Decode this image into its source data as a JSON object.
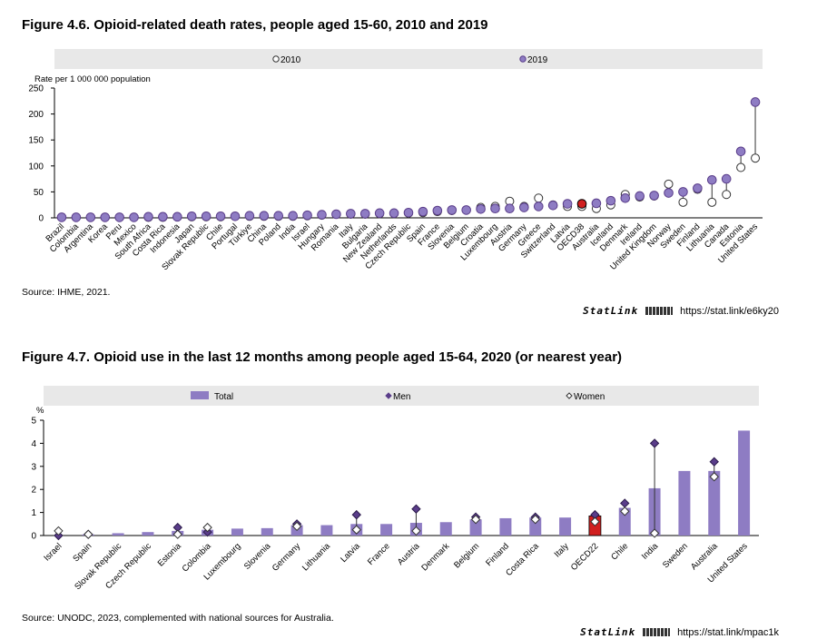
{
  "figures": [
    {
      "title": "Figure 4.6. Opioid-related death rates, people aged 15-60, 2010 and 2019",
      "source": "Source: IHME, 2021.",
      "statlink": {
        "brand": "StatLink",
        "url": "https://stat.link/e6ky20"
      }
    },
    {
      "title": "Figure 4.7. Opioid use in the last 12 months among people aged 15-64, 2020 (or nearest year)",
      "source": "Source: UNODC, 2023, complemented with national sources for Australia.",
      "statlink": {
        "brand": "StatLink",
        "url": "https://stat.link/mpac1k"
      }
    }
  ],
  "colors": {
    "purple": "#8e7cc3",
    "purple_dark": "#5a3d8a",
    "highlight": "#d11f1f",
    "legend_bg": "#e8e8e8"
  },
  "chart_data": [
    {
      "type": "scatter",
      "ylabel": "Rate per 1 000 000 population",
      "ylim": [
        0,
        250
      ],
      "yticks": [
        0,
        50,
        100,
        150,
        200,
        250
      ],
      "grid": false,
      "legend": "top",
      "highlight_category": "OECD38",
      "categories": [
        "Brazil",
        "Colombia",
        "Argentina",
        "Korea",
        "Peru",
        "Mexico",
        "South Africa",
        "Costa Rica",
        "Indonesia",
        "Japan",
        "Slovak Republic",
        "Chile",
        "Portugal",
        "Türkiye",
        "China",
        "Poland",
        "India",
        "Israel",
        "Hungary",
        "Romania",
        "Italy",
        "Bulgaria",
        "New Zealand",
        "Netherlands",
        "Czech Republic",
        "Spain",
        "France",
        "Slovenia",
        "Belgium",
        "Croatia",
        "Luxembourg",
        "Austria",
        "Germany",
        "Greece",
        "Switzerland",
        "Latvia",
        "OECD38",
        "Australia",
        "Iceland",
        "Denmark",
        "Ireland",
        "United Kingdom",
        "Norway",
        "Sweden",
        "Finland",
        "Lithuania",
        "Canada",
        "Estonia",
        "United States"
      ],
      "series": [
        {
          "name": "2010",
          "marker": "open-circle",
          "values": [
            1,
            1,
            1,
            1,
            1,
            1,
            1,
            1,
            2,
            2,
            2,
            2,
            3,
            3,
            3,
            3,
            3,
            4,
            5,
            7,
            7,
            7,
            8,
            9,
            9,
            10,
            12,
            14,
            15,
            20,
            22,
            32,
            22,
            38,
            25,
            22,
            22,
            18,
            25,
            45,
            40,
            42,
            65,
            30,
            55,
            30,
            45,
            97,
            115
          ]
        },
        {
          "name": "2019",
          "marker": "filled-circle",
          "values": [
            1,
            1,
            1,
            1,
            1,
            1,
            2,
            2,
            2,
            3,
            3,
            3,
            3,
            4,
            4,
            4,
            4,
            5,
            6,
            7,
            8,
            8,
            9,
            9,
            10,
            12,
            14,
            15,
            15,
            17,
            18,
            18,
            20,
            22,
            24,
            27,
            27,
            28,
            33,
            38,
            42,
            43,
            48,
            50,
            57,
            73,
            75,
            128,
            223
          ]
        }
      ]
    },
    {
      "type": "bar",
      "ylabel": "%",
      "ylim": [
        0,
        5
      ],
      "yticks": [
        0,
        1,
        2,
        3,
        4,
        5
      ],
      "grid": false,
      "legend": "top",
      "highlight_category": "OECD22",
      "categories": [
        "Israel",
        "Spain",
        "Slovak Republic",
        "Czech Republic",
        "Estonia",
        "Colombia",
        "Luxembourg",
        "Slovenia",
        "Germany",
        "Lithuania",
        "Latvia",
        "France",
        "Austria",
        "Denmark",
        "Belgium",
        "Finland",
        "Costa Rica",
        "Italy",
        "OECD22",
        "Chile",
        "India",
        "Sweden",
        "Australia",
        "United States"
      ],
      "series": [
        {
          "name": "Total",
          "marker": "bar",
          "values": [
            0.0,
            0.05,
            0.1,
            0.15,
            0.2,
            0.25,
            0.3,
            0.32,
            0.45,
            0.45,
            0.5,
            0.5,
            0.55,
            0.58,
            0.7,
            0.75,
            0.78,
            0.78,
            0.85,
            1.2,
            2.05,
            2.8,
            2.8,
            4.55
          ]
        },
        {
          "name": "Men",
          "marker": "filled-diamond",
          "values": [
            0.0,
            0.05,
            null,
            null,
            0.35,
            0.15,
            null,
            null,
            0.5,
            null,
            0.9,
            null,
            1.15,
            null,
            0.8,
            null,
            0.8,
            null,
            0.9,
            1.4,
            4.0,
            null,
            3.2,
            null
          ]
        },
        {
          "name": "Women",
          "marker": "open-diamond",
          "values": [
            0.2,
            0.05,
            null,
            null,
            0.05,
            0.35,
            null,
            null,
            0.4,
            null,
            0.25,
            null,
            0.2,
            null,
            0.7,
            null,
            0.7,
            null,
            0.6,
            1.05,
            0.1,
            null,
            2.55,
            null
          ]
        }
      ]
    }
  ]
}
